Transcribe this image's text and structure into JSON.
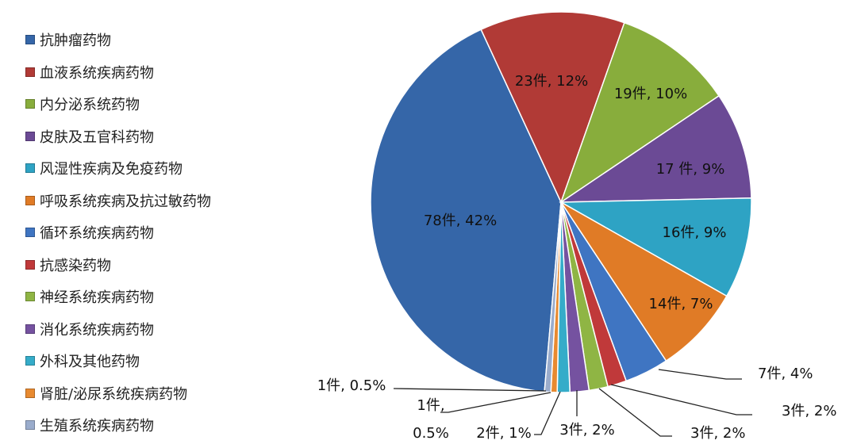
{
  "chart_data": {
    "type": "pie",
    "legend_position": "left",
    "start_angle_deg": 185,
    "categories": [
      "抗肿瘤药物",
      "血液系统疾病药物",
      "内分泌系统药物",
      "皮肤及五官科药物",
      "风湿性疾病及免疫药物",
      "呼吸系统疾病及抗过敏药物",
      "循环系统疾病药物",
      "抗感染药物",
      "神经系统疾病药物",
      "消化系统疾病药物",
      "外科及其他药物",
      "肾脏/泌尿系统疾病药物",
      "生殖系统疾病药物"
    ],
    "values": [
      78,
      23,
      19,
      17,
      16,
      14,
      7,
      3,
      3,
      3,
      2,
      1,
      1
    ],
    "data_labels": [
      "78件, 42%",
      "23件, 12%",
      "19件, 10%",
      "17 件, 9%",
      "16件, 9%",
      "14件, 7%",
      "7件, 4%",
      "3件, 2%",
      "3件, 2%",
      "3件, 2%",
      "2件, 1%",
      "1件, 0.5%",
      "1件, 0.5%"
    ],
    "colors": [
      "#3566a8",
      "#b13a36",
      "#88ad3c",
      "#6b4a95",
      "#2ea3c4",
      "#e07b26",
      "#3f75c2",
      "#c0393a",
      "#8fb544",
      "#7552a0",
      "#35acc9",
      "#e88a30",
      "#9aaccc"
    ]
  }
}
